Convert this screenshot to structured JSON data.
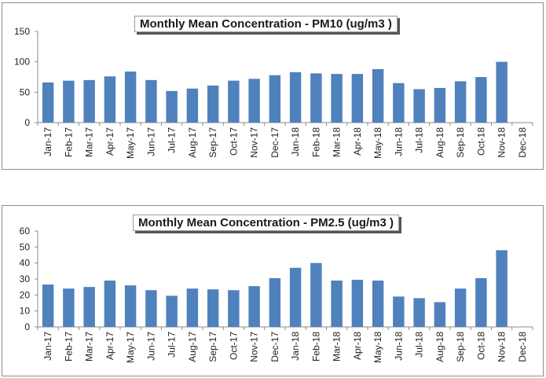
{
  "chart_data": [
    {
      "type": "bar",
      "title": "Monthly Mean Concentration - PM10 (ug/m3 )",
      "xlabel": "",
      "ylabel": "",
      "categories": [
        "Jan-17",
        "Feb-17",
        "Mar-17",
        "Apr-17",
        "May-17",
        "Jun-17",
        "Jul-17",
        "Aug-17",
        "Sep-17",
        "Oct-17",
        "Nov-17",
        "Dec-17",
        "Jan-18",
        "Feb-18",
        "Mar-18",
        "Apr-18",
        "May-18",
        "Jun-18",
        "Jul-18",
        "Aug-18",
        "Sep-18",
        "Oct-18",
        "Nov-18",
        "Dec-18"
      ],
      "values": [
        66,
        69,
        70,
        76,
        84,
        70,
        52,
        56,
        61,
        69,
        72,
        78,
        83,
        81,
        80,
        80,
        88,
        65,
        55,
        57,
        68,
        75,
        100,
        null
      ],
      "ylim": [
        0,
        150
      ],
      "yticks": [
        "0",
        "50",
        "100",
        "150"
      ],
      "grid": false,
      "bar_color": "#4f81bd"
    },
    {
      "type": "bar",
      "title": "Monthly Mean Concentration - PM2.5 (ug/m3 )",
      "xlabel": "",
      "ylabel": "",
      "categories": [
        "Jan-17",
        "Feb-17",
        "Mar-17",
        "Apr-17",
        "May-17",
        "Jun-17",
        "Jul-17",
        "Aug-17",
        "Sep-17",
        "Oct-17",
        "Nov-17",
        "Dec-17",
        "Jan-18",
        "Feb-18",
        "Mar-18",
        "Apr-18",
        "May-18",
        "Jun-18",
        "Jul-18",
        "Aug-18",
        "Sep-18",
        "Oct-18",
        "Nov-18",
        "Dec-18"
      ],
      "values": [
        26.5,
        24,
        25,
        29,
        26,
        23,
        19.5,
        24,
        23.5,
        23,
        25.5,
        30.5,
        37,
        40,
        29,
        29.5,
        29,
        19,
        18,
        15.5,
        24,
        30.5,
        48,
        null
      ],
      "ylim": [
        0,
        60
      ],
      "yticks": [
        "0",
        "10",
        "20",
        "30",
        "40",
        "50",
        "60"
      ],
      "grid": false,
      "bar_color": "#4f81bd"
    }
  ]
}
